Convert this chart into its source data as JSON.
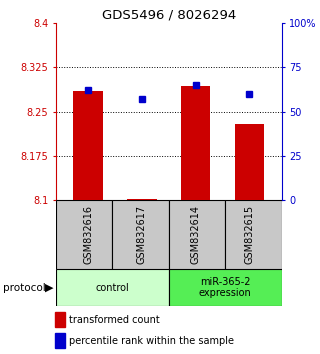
{
  "title": "GDS5496 / 8026294",
  "samples": [
    "GSM832616",
    "GSM832617",
    "GSM832614",
    "GSM832615"
  ],
  "transformed_counts": [
    8.285,
    8.102,
    8.293,
    8.228
  ],
  "percentile_ranks": [
    62,
    57,
    65,
    60
  ],
  "ylim_left": [
    8.1,
    8.4
  ],
  "ylim_right": [
    0,
    100
  ],
  "yticks_left": [
    8.1,
    8.175,
    8.25,
    8.325,
    8.4
  ],
  "yticks_right": [
    0,
    25,
    50,
    75,
    100
  ],
  "ytick_labels_left": [
    "8.1",
    "8.175",
    "8.25",
    "8.325",
    "8.4"
  ],
  "ytick_labels_right": [
    "0",
    "25",
    "50",
    "75",
    "100%"
  ],
  "bar_color": "#cc0000",
  "dot_color": "#0000cc",
  "bar_width": 0.55,
  "bg_color": "#ffffff",
  "left_axis_color": "#cc0000",
  "right_axis_color": "#0000cc",
  "protocol_label": "protocol",
  "legend_bar_label": "transformed count",
  "legend_dot_label": "percentile rank within the sample",
  "sample_box_color": "#c8c8c8",
  "control_color": "#ccffcc",
  "expression_color": "#55ee55",
  "group_defs": [
    {
      "indices": [
        0,
        1
      ],
      "label": "control"
    },
    {
      "indices": [
        2,
        3
      ],
      "label": "miR-365-2\nexpression"
    }
  ]
}
